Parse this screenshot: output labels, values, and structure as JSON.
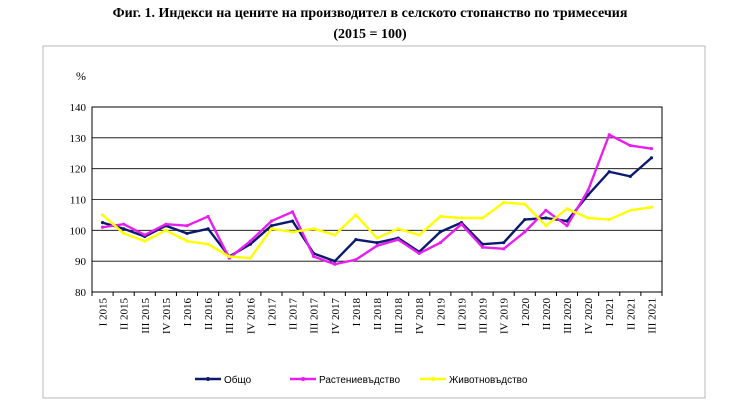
{
  "title_line1": "Фиг. 1. Индекси на цените на производител в селското стопанство по тримесечия",
  "title_line2": "(2015 = 100)",
  "colors": {
    "frame": "#b8b8b8",
    "grid": "#000000"
  },
  "chart_data": {
    "type": "line",
    "title": "Фиг. 1. Индекси на цените на производител в селското стопанство по тримесечия",
    "subtitle": "(2015 = 100)",
    "ylabel": "%",
    "xlabel": "",
    "ylim": [
      80,
      140
    ],
    "yticks": [
      "80",
      "90",
      "100",
      "110",
      "120",
      "130",
      "140"
    ],
    "grid": true,
    "legend_position": "bottom",
    "categories": [
      "I 2015",
      "II 2015",
      "III 2015",
      "IV 2015",
      "I 2016",
      "II 2016",
      "III 2016",
      "IV 2016",
      "I 2017",
      "II 2017",
      "III 2017",
      "IV 2017",
      "I 2018",
      "II 2018",
      "III 2018",
      "IV 2018",
      "I 2019",
      "II 2019",
      "III 2019",
      "IV 2019",
      "I 2020",
      "II 2020",
      "III 2020",
      "IV 2020",
      "I 2021",
      "II 2021",
      "III 2021"
    ],
    "series": [
      {
        "name": "Общо",
        "color": "#0a1a6e",
        "values": [
          102.5,
          100.5,
          98.0,
          101.5,
          99.0,
          100.5,
          91.5,
          95.5,
          101.5,
          103.0,
          92.5,
          90.0,
          97.0,
          96.0,
          97.5,
          93.0,
          99.5,
          102.5,
          95.5,
          96.0,
          103.5,
          104.0,
          103.0,
          111.5,
          119.0,
          117.5,
          123.5
        ]
      },
      {
        "name": "Растениевъдство",
        "color": "#e81ef0",
        "values": [
          101.0,
          102.0,
          98.5,
          102.0,
          101.5,
          104.5,
          91.0,
          96.5,
          103.0,
          106.0,
          91.5,
          89.0,
          90.5,
          95.0,
          97.0,
          92.5,
          96.0,
          102.0,
          94.5,
          94.0,
          99.5,
          106.5,
          101.5,
          113.0,
          131.0,
          127.5,
          126.5
        ]
      },
      {
        "name": "Животновъдство",
        "color": "#ffff00",
        "values": [
          105.0,
          99.0,
          96.5,
          100.0,
          96.5,
          95.5,
          91.5,
          91.0,
          100.5,
          99.5,
          100.5,
          98.5,
          105.0,
          97.5,
          100.5,
          98.5,
          104.5,
          104.0,
          104.0,
          109.0,
          108.5,
          101.5,
          107.0,
          104.0,
          103.5,
          106.5,
          107.5
        ]
      }
    ]
  }
}
